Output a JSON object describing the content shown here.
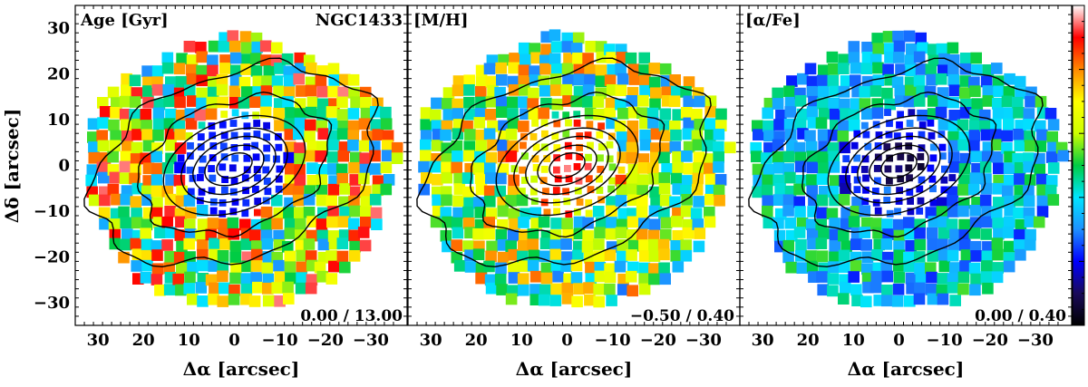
{
  "figure": {
    "x_axis_title": "Δα [arcsec]",
    "y_axis_title": "Δδ [arcsec]"
  },
  "chart_data": [
    {
      "type": "heatmap",
      "title": "Age [Gyr]",
      "galaxy": "NGC1433",
      "range_label": "0.00 / 13.00",
      "color_range": [
        0.0,
        13.0
      ],
      "xlabel": "Δα [arcsec]",
      "ylabel": "Δδ [arcsec]",
      "xlim": [
        35,
        -38
      ],
      "ylim": [
        -35,
        35
      ],
      "x_ticks": [
        "30",
        "20",
        "10",
        "0",
        "−10",
        "−20",
        "−30"
      ],
      "y_ticks": [
        "30",
        "20",
        "10",
        "0",
        "−10",
        "−20",
        "−30"
      ],
      "inner_region": "low values (blue), center radius ~11 arcsec"
    },
    {
      "type": "heatmap",
      "title": "[M/H]",
      "galaxy": "",
      "range_label": "−0.50 / 0.40",
      "color_range": [
        -0.5,
        0.4
      ],
      "xlabel": "Δα [arcsec]",
      "ylabel": "",
      "xlim": [
        35,
        -38
      ],
      "ylim": [
        -35,
        35
      ],
      "x_ticks": [
        "30",
        "20",
        "10",
        "0",
        "−10",
        "−20",
        "−30"
      ],
      "y_ticks": [],
      "inner_region": "high values (red/yellow) in nucleus"
    },
    {
      "type": "heatmap",
      "title": "[α/Fe]",
      "galaxy": "",
      "range_label": "0.00 / 0.40",
      "color_range": [
        0.0,
        0.4
      ],
      "xlabel": "Δα [arcsec]",
      "ylabel": "",
      "xlim": [
        35,
        -38
      ],
      "ylim": [
        -35,
        35
      ],
      "x_ticks": [
        "30",
        "20",
        "10",
        "0",
        "−10",
        "−20",
        "−30"
      ],
      "y_ticks": [],
      "inner_region": "low values (dark blue) in nucleus"
    }
  ],
  "colorbar": {
    "colors": [
      "#000000",
      "#1a0a5a",
      "#0000ff",
      "#1e90ff",
      "#00e5ff",
      "#00cc44",
      "#ccff00",
      "#ffff00",
      "#ff8800",
      "#ff0000",
      "#ffffff"
    ]
  }
}
